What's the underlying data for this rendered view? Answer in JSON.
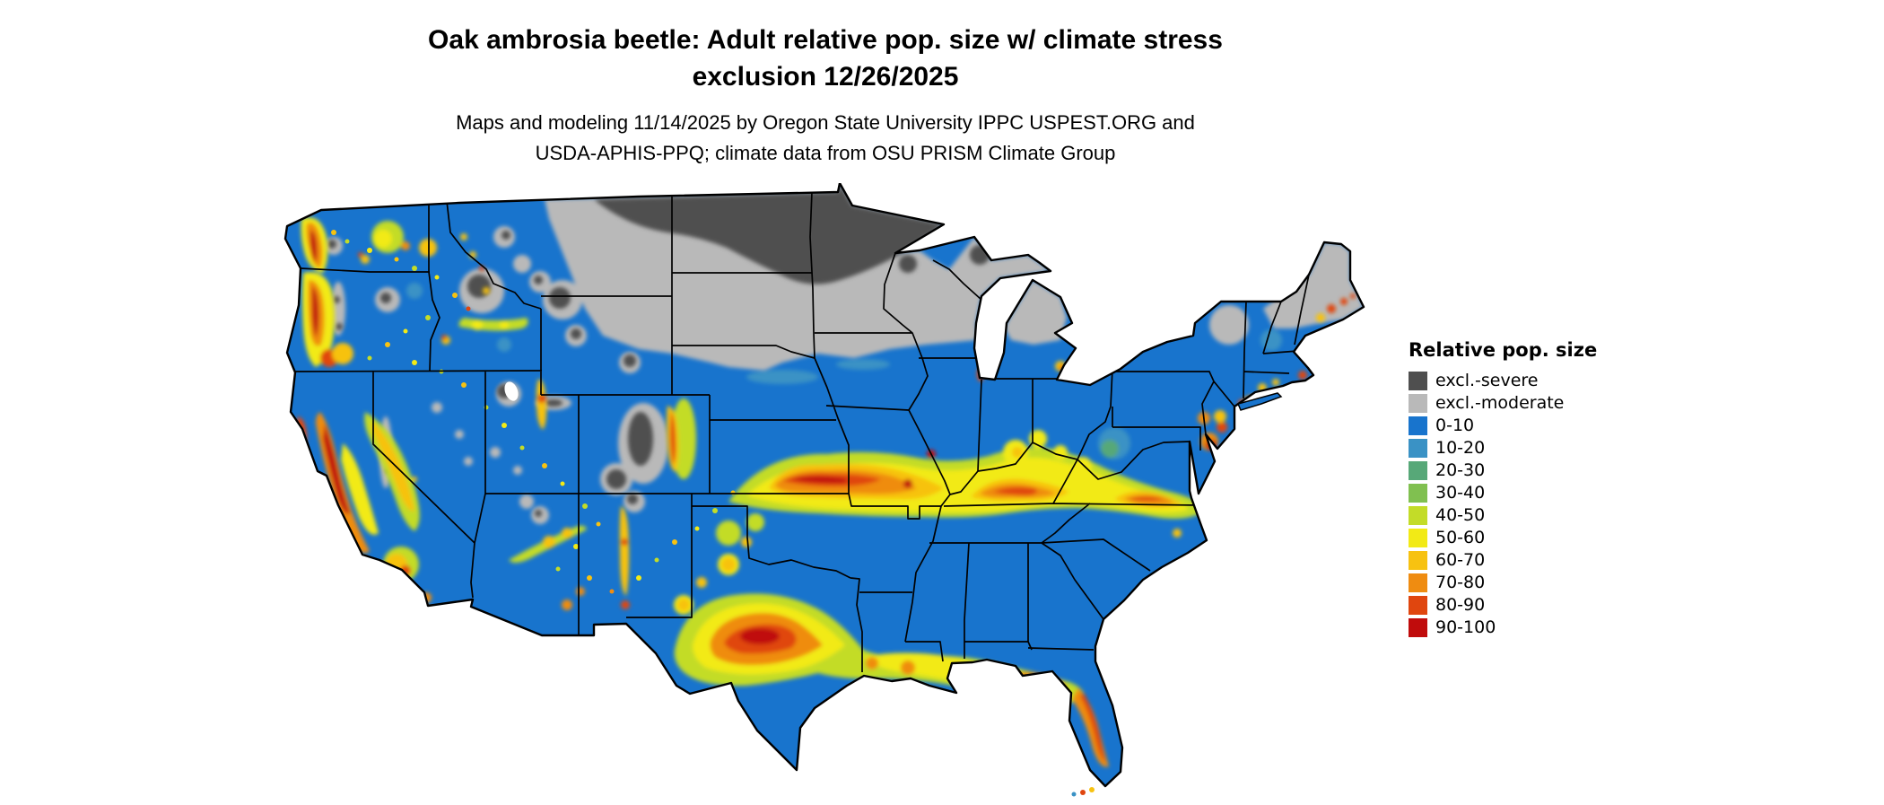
{
  "title": {
    "line1": "Oak ambrosia beetle: Adult relative pop. size w/ climate stress",
    "line2": "exclusion 12/26/2025"
  },
  "subtitle": {
    "line1": "Maps and modeling 11/14/2025 by Oregon State University IPPC USPEST.ORG and",
    "line2": "USDA-APHIS-PPQ; climate data from OSU PRISM Climate Group"
  },
  "legend": {
    "title": "Relative pop. size",
    "items": [
      {
        "label": "excl.-severe",
        "color": "#4f4f4f"
      },
      {
        "label": "excl.-moderate",
        "color": "#b9b9b9"
      },
      {
        "label": "0-10",
        "color": "#1874cd"
      },
      {
        "label": "10-20",
        "color": "#3a92c5"
      },
      {
        "label": "20-30",
        "color": "#57a878"
      },
      {
        "label": "30-40",
        "color": "#80c050"
      },
      {
        "label": "40-50",
        "color": "#c3dc28"
      },
      {
        "label": "50-60",
        "color": "#f2ea16"
      },
      {
        "label": "60-70",
        "color": "#f7c211"
      },
      {
        "label": "70-80",
        "color": "#ef8c11"
      },
      {
        "label": "80-90",
        "color": "#e0460f"
      },
      {
        "label": "90-100",
        "color": "#c00c0c"
      }
    ]
  },
  "map": {
    "region": "Continental United States",
    "base_color": "#1874cd",
    "background": "#ffffff",
    "border_color": "#000000"
  }
}
